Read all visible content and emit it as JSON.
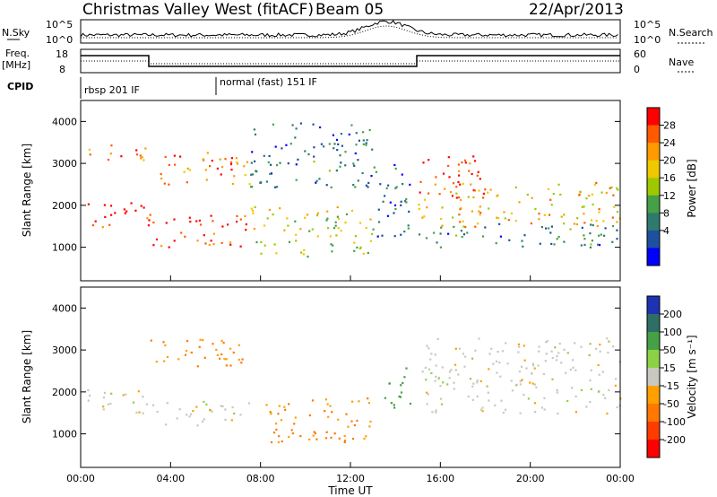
{
  "header": {
    "station": "Christmas Valley West (fitACF)",
    "beam": "Beam 05",
    "date": "22/Apr/2013"
  },
  "noise_panel": {
    "left_label": "N.Sky",
    "right_label": "N.Search",
    "left_ticks": [
      "10^5",
      "10^0"
    ],
    "right_ticks": [
      "10^5",
      "10^0"
    ]
  },
  "freq_panel": {
    "left_label_1": "Freq.",
    "left_label_2": "[MHz]",
    "right_label": "Nave",
    "left_ticks": [
      "18",
      "8"
    ],
    "right_ticks": [
      "60",
      "0"
    ]
  },
  "cpid": {
    "label": "CPID",
    "modes": [
      {
        "name": "rbsp 201 IF",
        "start_hour": 0
      },
      {
        "name": "normal (fast) 151 IF",
        "start_hour": 6
      }
    ]
  },
  "chart_data": [
    {
      "type": "heatmap",
      "name": "power",
      "ylabel": "Slant Range [km]",
      "xlim": [
        0,
        24
      ],
      "ylim": [
        200,
        4500
      ],
      "y_ticks": [
        "4000",
        "3000",
        "2000",
        "1000"
      ],
      "colorbar": {
        "label": "Power [dB]",
        "ticks": [
          "28",
          "24",
          "20",
          "16",
          "12",
          "8",
          "4"
        ],
        "colors": [
          "#ff0000",
          "#ff5a00",
          "#ff9b00",
          "#f0c800",
          "#a0c800",
          "#46a046",
          "#2f7a6e",
          "#1e50a0",
          "#0000ff"
        ]
      },
      "echo_bands": [
        {
          "t": [
            0,
            3
          ],
          "range": [
            1500,
            2100
          ],
          "level": 28
        },
        {
          "t": [
            0,
            3
          ],
          "range": [
            3100,
            3500
          ],
          "level": 24
        },
        {
          "t": [
            3,
            7.5
          ],
          "range": [
            1000,
            1800
          ],
          "level": 28
        },
        {
          "t": [
            3,
            7.5
          ],
          "range": [
            2500,
            3300
          ],
          "level": 24
        },
        {
          "t": [
            7.5,
            13
          ],
          "range": [
            800,
            2000
          ],
          "level": 16
        },
        {
          "t": [
            7.5,
            13
          ],
          "range": [
            2400,
            4000
          ],
          "level": 8
        },
        {
          "t": [
            13,
            14.8
          ],
          "range": [
            1200,
            3000
          ],
          "level": 6
        },
        {
          "t": [
            15,
            18
          ],
          "range": [
            2200,
            3200
          ],
          "level": 28
        },
        {
          "t": [
            15,
            24
          ],
          "range": [
            1500,
            2600
          ],
          "level": 20
        },
        {
          "t": [
            15,
            24
          ],
          "range": [
            1000,
            1600
          ],
          "level": 8
        }
      ]
    },
    {
      "type": "heatmap",
      "name": "velocity",
      "ylabel": "Slant Range [km]",
      "xlabel": "Time UT",
      "xlim": [
        0,
        24
      ],
      "ylim": [
        200,
        4500
      ],
      "x_ticks": [
        "00:00",
        "04:00",
        "08:00",
        "12:00",
        "16:00",
        "20:00",
        "00:00"
      ],
      "y_ticks": [
        "4000",
        "3000",
        "2000",
        "1000"
      ],
      "colorbar": {
        "label": "Velocity [m s⁻¹]",
        "ticks": [
          "200",
          "100",
          "50",
          "15",
          "-15",
          "-50",
          "-100",
          "-200"
        ],
        "colors": [
          "#1e32b4",
          "#2f6e64",
          "#46a046",
          "#8cd246",
          "#c8c8c0",
          "#ffa000",
          "#ff7800",
          "#ff3c00",
          "#ff0000"
        ]
      },
      "echo_bands": [
        {
          "t": [
            0,
            3
          ],
          "range": [
            1500,
            2100
          ],
          "velocity": 0
        },
        {
          "t": [
            3,
            7.5
          ],
          "range": [
            1200,
            1800
          ],
          "velocity": 0
        },
        {
          "t": [
            3,
            7.5
          ],
          "range": [
            2600,
            3300
          ],
          "velocity": -50
        },
        {
          "t": [
            8,
            13
          ],
          "range": [
            800,
            1900
          ],
          "velocity": -50
        },
        {
          "t": [
            13.5,
            14.8
          ],
          "range": [
            1600,
            2600
          ],
          "velocity": 50
        },
        {
          "t": [
            15,
            24
          ],
          "range": [
            1500,
            3300
          ],
          "velocity": 0
        }
      ]
    }
  ]
}
